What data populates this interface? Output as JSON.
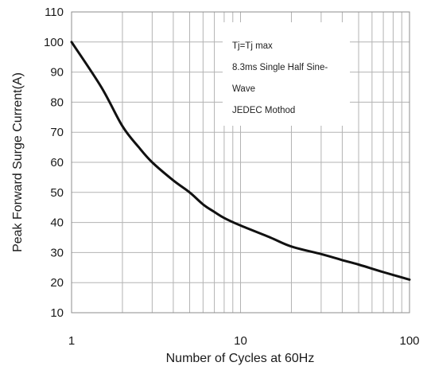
{
  "chart_data": {
    "type": "line",
    "x_scale": "log",
    "y_scale": "linear",
    "xlabel": "Number of Cycles at 60Hz",
    "ylabel": "Peak Forward Surge Current(A)",
    "xlim": [
      1,
      100
    ],
    "ylim": [
      10,
      110
    ],
    "x_ticks": [
      1,
      10,
      100
    ],
    "x_tick_labels": [
      "1",
      "10",
      "100"
    ],
    "y_ticks": [
      10,
      20,
      30,
      40,
      50,
      60,
      70,
      80,
      90,
      100,
      110
    ],
    "y_tick_labels": [
      "10",
      "20",
      "30",
      "40",
      "50",
      "60",
      "70",
      "80",
      "90",
      "100",
      "110"
    ],
    "grid": true,
    "series": [
      {
        "x": [
          1,
          1.5,
          2,
          2.5,
          3,
          4,
          5,
          6,
          7,
          8,
          10,
          15,
          20,
          30,
          40,
          50,
          70,
          100
        ],
        "y": [
          100,
          85,
          72,
          65,
          60,
          54,
          50,
          46,
          43.5,
          41.5,
          39,
          35,
          32,
          29.5,
          27.5,
          26,
          23.5,
          21
        ]
      }
    ],
    "annotation_lines": [
      "Tj=Tj max",
      "8.3ms Single Half Sine-",
      "Wave",
      "JEDEC Mothod"
    ],
    "colors": {
      "line": "#111111",
      "grid": "#b3b3b3",
      "border": "#8c8c8c",
      "annotation_box": "#ffffff"
    }
  }
}
